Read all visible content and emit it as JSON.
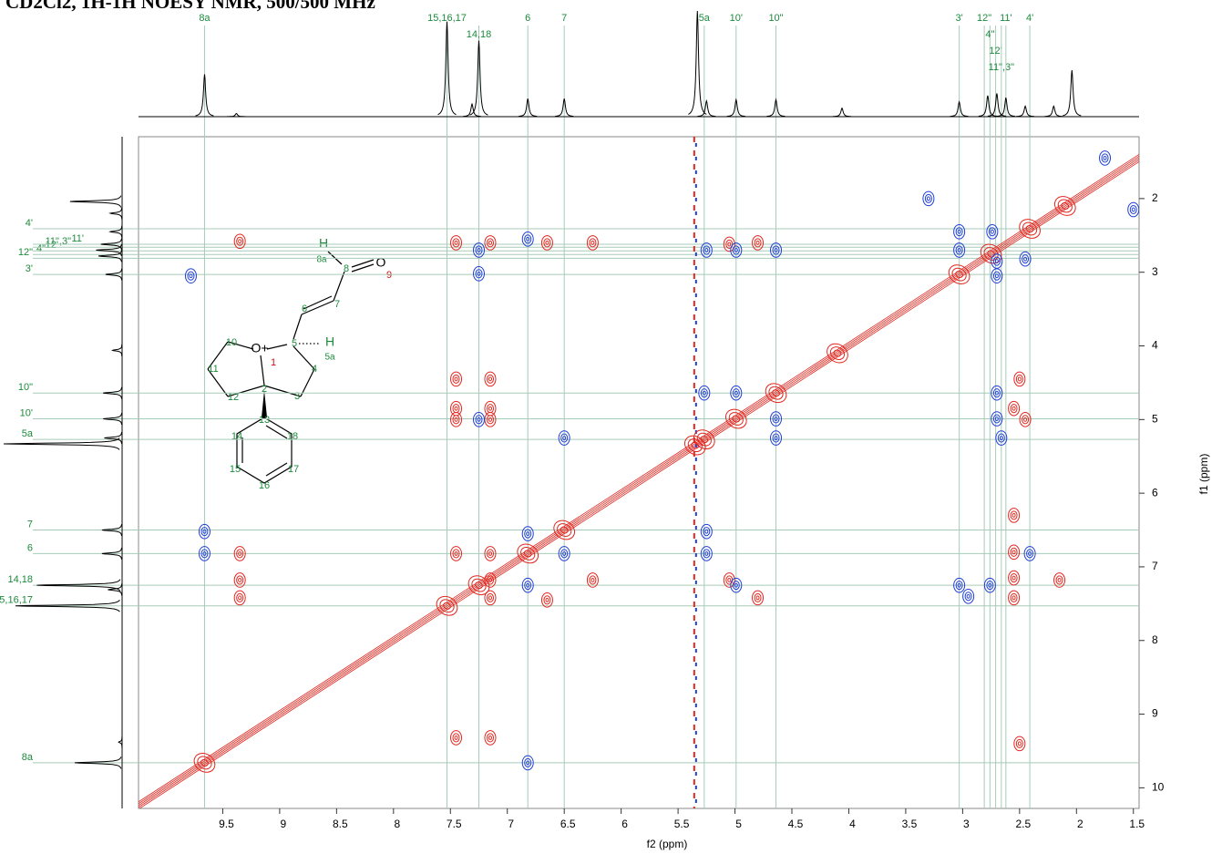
{
  "chart_data": {
    "type": "noesy",
    "title": "CD2Cl2, 1H-1H NOESY NMR, 500/500 MHz",
    "x_label": "f2 (ppm)",
    "y_label": "f1 (ppm)",
    "xlim": [
      10.24,
      1.45
    ],
    "ylim": [
      1.16,
      10.28
    ],
    "xticks": [
      9.5,
      9.0,
      8.5,
      8.0,
      7.5,
      7.0,
      6.5,
      6.0,
      5.5,
      5.0,
      4.5,
      4.0,
      3.5,
      3.0,
      2.5,
      2.0,
      1.5
    ],
    "yticks": [
      2,
      3,
      4,
      5,
      6,
      7,
      8,
      9,
      10
    ],
    "assignments": [
      {
        "label": "8a",
        "ppm": 9.66
      },
      {
        "label": "15,16,17",
        "ppm": 7.53
      },
      {
        "label": "14,18",
        "ppm": 7.25
      },
      {
        "label": "6",
        "ppm": 6.82
      },
      {
        "label": "7",
        "ppm": 6.5
      },
      {
        "label": "5a",
        "ppm": 5.27
      },
      {
        "label": "10'",
        "ppm": 4.99
      },
      {
        "label": "10\"",
        "ppm": 4.64
      },
      {
        "label": "3'",
        "ppm": 3.03
      },
      {
        "label": "12\"",
        "ppm": 2.81
      },
      {
        "label": "4\"",
        "ppm": 2.76
      },
      {
        "label": "12'",
        "ppm": 2.71
      },
      {
        "label": "11\",3\"",
        "ppm": 2.66
      },
      {
        "label": "11'",
        "ppm": 2.62
      },
      {
        "label": "4'",
        "ppm": 2.41
      }
    ],
    "projection": {
      "ppm": [
        9.66,
        9.38,
        7.53,
        7.31,
        7.25,
        6.82,
        6.5,
        5.33,
        5.25,
        4.99,
        4.64,
        4.06,
        3.03,
        2.78,
        2.7,
        2.62,
        2.45,
        2.2,
        2.04
      ],
      "height": [
        40,
        3,
        90,
        12,
        72,
        17,
        17,
        100,
        15,
        16,
        16,
        8,
        14,
        20,
        22,
        18,
        10,
        10,
        44
      ]
    },
    "solvent_stripe": 5.35,
    "diagonal_peaks": [
      9.66,
      7.53,
      7.25,
      6.82,
      6.5,
      5.35,
      5.27,
      4.99,
      4.64,
      4.1,
      3.03,
      2.75,
      2.41,
      2.1
    ],
    "positive_peaks": {
      "color": "#e3261e",
      "x": [
        9.35,
        7.45,
        7.15,
        6.65,
        6.25,
        5.05,
        4.8,
        7.45,
        7.15,
        7.45,
        7.15,
        9.35,
        7.45,
        7.15,
        9.35,
        9.35,
        7.15,
        7.15,
        6.65,
        6.25,
        5.05,
        4.8,
        2.55,
        2.55,
        2.55,
        2.55,
        2.5,
        2.55,
        2.45,
        2.15,
        7.45,
        7.15,
        2.5,
        7.15,
        7.45
      ],
      "y": [
        2.58,
        2.6,
        2.6,
        2.6,
        2.6,
        2.62,
        2.6,
        4.85,
        4.85,
        5.0,
        5.0,
        6.82,
        6.82,
        6.82,
        7.18,
        7.42,
        7.18,
        7.42,
        7.45,
        7.18,
        7.18,
        7.42,
        7.15,
        7.42,
        6.3,
        6.8,
        4.45,
        4.85,
        5.0,
        7.18,
        9.32,
        9.32,
        9.4,
        4.45,
        4.45
      ]
    },
    "negative_peaks": {
      "color": "#1f3fd6",
      "x": [
        9.78,
        9.66,
        9.66,
        7.25,
        7.25,
        7.25,
        6.82,
        6.82,
        6.82,
        6.82,
        6.5,
        6.5,
        5.25,
        5.25,
        5.25,
        4.99,
        4.99,
        4.99,
        4.64,
        4.64,
        4.64,
        5.27,
        3.03,
        3.03,
        3.03,
        2.95,
        2.76,
        2.7,
        2.7,
        2.7,
        2.66,
        2.45,
        2.41,
        2.74,
        3.3,
        1.75,
        1.5,
        2.7
      ],
      "y": [
        3.05,
        6.82,
        6.52,
        2.7,
        3.02,
        5.0,
        2.55,
        6.55,
        7.25,
        9.66,
        5.25,
        6.82,
        2.7,
        6.52,
        6.82,
        2.7,
        4.64,
        7.25,
        2.7,
        4.99,
        5.25,
        4.64,
        2.45,
        2.7,
        7.25,
        7.4,
        7.25,
        2.85,
        3.05,
        4.64,
        5.25,
        2.82,
        6.82,
        2.45,
        2.0,
        1.45,
        2.15,
        4.99
      ]
    },
    "structure_labels": [
      "H",
      "8a",
      "8",
      "O",
      "9",
      "7",
      "6",
      "5",
      "H",
      "5a",
      "O+",
      "1",
      "10",
      "11",
      "12",
      "2",
      "3",
      "4",
      "13",
      "14",
      "18",
      "15",
      "17",
      "16"
    ]
  }
}
